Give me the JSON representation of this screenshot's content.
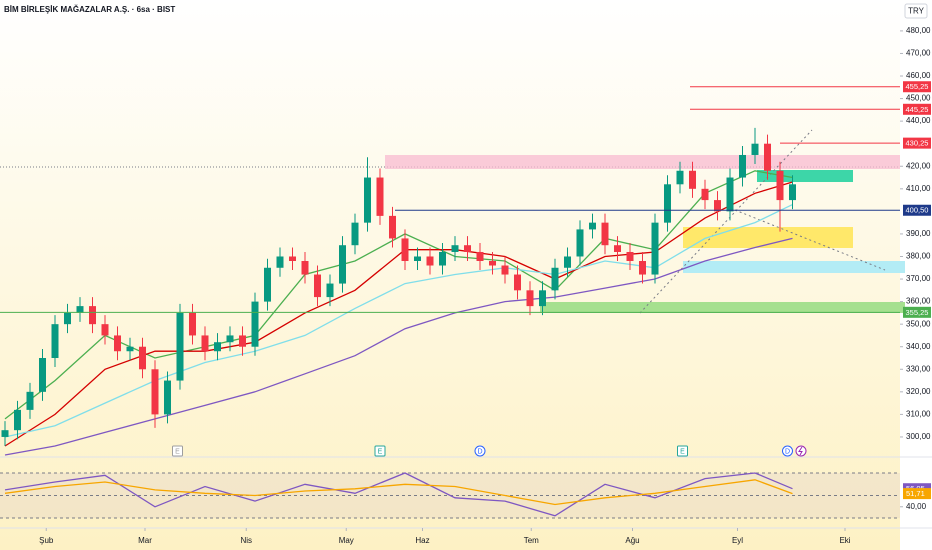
{
  "header": {
    "title": "BİM BİRLEŞİK MAĞAZALAR A.Ş. · 6sa · BIST",
    "currency": "TRY"
  },
  "chart_data": [
    {
      "type": "candlestick",
      "xlim": [
        -0.4,
        71.6
      ],
      "ylim": [
        292,
        493.7
      ],
      "yticks": [
        {
          "value": 300,
          "label": "300,00"
        },
        {
          "value": 310,
          "label": "310,00"
        },
        {
          "value": 320,
          "label": "320,00"
        },
        {
          "value": 330,
          "label": "330,00"
        },
        {
          "value": 340,
          "label": "340,00"
        },
        {
          "value": 350,
          "label": "350,00"
        },
        {
          "value": 360,
          "label": "360,00"
        },
        {
          "value": 370,
          "label": "370,00"
        },
        {
          "value": 380,
          "label": "380,00"
        },
        {
          "value": 390,
          "label": "390,00"
        },
        {
          "value": 410,
          "label": "410,00"
        },
        {
          "value": 420,
          "label": "420,00"
        },
        {
          "value": 440,
          "label": "440,00"
        },
        {
          "value": 450,
          "label": "450,00"
        },
        {
          "value": 460,
          "label": "460,00"
        },
        {
          "value": 470,
          "label": "470,00"
        },
        {
          "value": 480,
          "label": "480,00"
        }
      ],
      "xticks": [
        {
          "value": 3.3,
          "label": "Şub"
        },
        {
          "value": 11.2,
          "label": "Mar"
        },
        {
          "value": 19.3,
          "label": "Nis"
        },
        {
          "value": 27.3,
          "label": "May"
        },
        {
          "value": 33.4,
          "label": "Haz"
        },
        {
          "value": 42.1,
          "label": "Tem"
        },
        {
          "value": 50.2,
          "label": "Ağu"
        },
        {
          "value": 58.6,
          "label": "Eyl"
        },
        {
          "value": 67.2,
          "label": "Eki"
        }
      ],
      "x": [
        0,
        1,
        2,
        3,
        4,
        5,
        6,
        7,
        8,
        9,
        10,
        11,
        12,
        13,
        14,
        15,
        16,
        17,
        18,
        19,
        20,
        21,
        22,
        23,
        24,
        25,
        26,
        27,
        28,
        29,
        30,
        31,
        32,
        33,
        34,
        35,
        36,
        37,
        38,
        39,
        40,
        41,
        42,
        43,
        44,
        45,
        46,
        47,
        48,
        49,
        50,
        51,
        52,
        53,
        54,
        55,
        56,
        57,
        58,
        59,
        60,
        61,
        62,
        63
      ],
      "open": [
        300,
        303,
        312,
        320,
        335,
        350,
        355,
        358,
        350,
        345,
        338,
        340,
        330,
        310,
        325,
        355,
        345,
        338,
        342,
        345,
        340,
        360,
        375,
        380,
        378,
        372,
        362,
        368,
        385,
        395,
        415,
        398,
        388,
        378,
        380,
        376,
        382,
        385,
        382,
        378,
        376,
        372,
        365,
        358,
        365,
        375,
        380,
        392,
        395,
        385,
        382,
        378,
        372,
        395,
        412,
        418,
        410,
        405,
        400,
        415,
        425,
        430,
        418,
        405
      ],
      "high": [
        307,
        316,
        324,
        339,
        354,
        359,
        362,
        362,
        354,
        349,
        344,
        344,
        334,
        329,
        359,
        359,
        349,
        346,
        349,
        349,
        364,
        379,
        384,
        384,
        382,
        376,
        372,
        389,
        399,
        424,
        419,
        402,
        392,
        384,
        384,
        386,
        389,
        389,
        386,
        382,
        380,
        376,
        369,
        369,
        379,
        384,
        396,
        399,
        399,
        389,
        386,
        382,
        399,
        416,
        422,
        422,
        414,
        409,
        419,
        429,
        437,
        434,
        422,
        416
      ],
      "low": [
        296,
        299,
        308,
        316,
        331,
        346,
        351,
        346,
        341,
        334,
        334,
        326,
        304,
        306,
        321,
        341,
        334,
        334,
        338,
        336,
        336,
        356,
        371,
        374,
        368,
        358,
        358,
        364,
        381,
        391,
        394,
        384,
        374,
        374,
        372,
        372,
        378,
        378,
        374,
        372,
        368,
        361,
        354,
        354,
        361,
        371,
        376,
        388,
        381,
        378,
        374,
        368,
        368,
        391,
        408,
        406,
        401,
        396,
        396,
        411,
        421,
        414,
        391,
        401
      ],
      "close": [
        303,
        312,
        320,
        335,
        350,
        355,
        358,
        350,
        345,
        338,
        340,
        330,
        310,
        325,
        355,
        345,
        338,
        342,
        345,
        340,
        360,
        375,
        380,
        378,
        372,
        362,
        368,
        385,
        395,
        415,
        398,
        388,
        378,
        380,
        376,
        382,
        385,
        382,
        378,
        376,
        372,
        365,
        358,
        365,
        375,
        380,
        392,
        395,
        385,
        382,
        378,
        372,
        395,
        412,
        418,
        410,
        405,
        400,
        415,
        425,
        430,
        418,
        405,
        412
      ],
      "up_color": "#089981",
      "down_color": "#f23645",
      "series": [
        {
          "color": "#4caf50",
          "x": [
            0,
            4,
            8,
            12,
            16,
            20,
            24,
            28,
            32,
            36,
            40,
            44,
            48,
            52,
            56,
            60,
            63
          ],
          "values": [
            308,
            325,
            345,
            335,
            340,
            345,
            372,
            378,
            390,
            380,
            378,
            365,
            388,
            383,
            408,
            418,
            415
          ]
        },
        {
          "color": "#d50000",
          "x": [
            0,
            4,
            8,
            12,
            16,
            20,
            24,
            28,
            32,
            36,
            40,
            44,
            48,
            52,
            56,
            60,
            63
          ],
          "values": [
            296,
            310,
            330,
            338,
            338,
            342,
            355,
            365,
            383,
            383,
            380,
            370,
            380,
            382,
            397,
            408,
            413
          ]
        },
        {
          "color": "#80deea",
          "x": [
            0,
            4,
            8,
            12,
            16,
            20,
            24,
            28,
            32,
            36,
            40,
            44,
            48,
            52,
            56,
            60,
            63
          ],
          "values": [
            300,
            305,
            315,
            325,
            333,
            338,
            345,
            357,
            368,
            372,
            375,
            372,
            378,
            375,
            388,
            395,
            403
          ]
        },
        {
          "color": "#7e57c2",
          "x": [
            0,
            4,
            8,
            12,
            16,
            20,
            24,
            28,
            32,
            36,
            40,
            44,
            48,
            52,
            56,
            60,
            63
          ],
          "values": [
            292,
            296,
            302,
            308,
            314,
            320,
            328,
            336,
            348,
            355,
            360,
            362,
            366,
            370,
            378,
            384,
            388
          ]
        }
      ],
      "levels": [
        {
          "value": 455.25,
          "label": "455,25",
          "color": "#f23645",
          "from": 54.8
        },
        {
          "value": 445.25,
          "label": "445,25",
          "color": "#f23645",
          "from": 54.8
        },
        {
          "value": 430.25,
          "label": "430,25",
          "color": "#f23645",
          "from": 62
        },
        {
          "value": 400.5,
          "label": "400,50",
          "color": "#1e3a8a",
          "from": 31.2
        },
        {
          "value": 355.25,
          "label": "355,25",
          "color": "#4caf50",
          "from": -0.4
        }
      ],
      "events": [
        {
          "x": 13.8,
          "label": "E",
          "color": "#9e9e9e"
        },
        {
          "x": 30,
          "label": "E",
          "color": "#26a69a"
        },
        {
          "x": 38,
          "label": "D",
          "color": "#2962ff"
        },
        {
          "x": 54.2,
          "label": "E",
          "color": "#26a69a"
        },
        {
          "x": 62.6,
          "label": "D",
          "color": "#2962ff"
        }
      ]
    },
    {
      "type": "line",
      "xlim": [
        -0.4,
        71.6
      ],
      "ylim": [
        23.8,
        79.8
      ],
      "yticks": [
        {
          "value": 40,
          "label": "40,00"
        }
      ],
      "levels": [
        70,
        50,
        30
      ],
      "series": [
        {
          "color": "#7e57c2",
          "x": [
            0,
            4,
            8,
            12,
            16,
            20,
            24,
            28,
            32,
            36,
            40,
            44,
            48,
            52,
            56,
            60,
            63
          ],
          "values": [
            55,
            62,
            68,
            40,
            58,
            45,
            60,
            52,
            70,
            48,
            45,
            32,
            60,
            48,
            65,
            70,
            56.05
          ],
          "value_labels": [
            null,
            null,
            null,
            null,
            null,
            null,
            null,
            null,
            null,
            null,
            null,
            null,
            null,
            null,
            null,
            null,
            "56,05"
          ]
        },
        {
          "color": "#f7a600",
          "x": [
            0,
            4,
            8,
            12,
            16,
            20,
            24,
            28,
            32,
            36,
            40,
            44,
            48,
            52,
            56,
            60,
            63
          ],
          "values": [
            52,
            58,
            62,
            55,
            52,
            50,
            54,
            56,
            60,
            58,
            50,
            42,
            48,
            52,
            58,
            64,
            51.71
          ],
          "value_labels": [
            null,
            null,
            null,
            null,
            null,
            null,
            null,
            null,
            null,
            null,
            null,
            null,
            null,
            null,
            null,
            null,
            "51,71"
          ]
        }
      ]
    }
  ]
}
